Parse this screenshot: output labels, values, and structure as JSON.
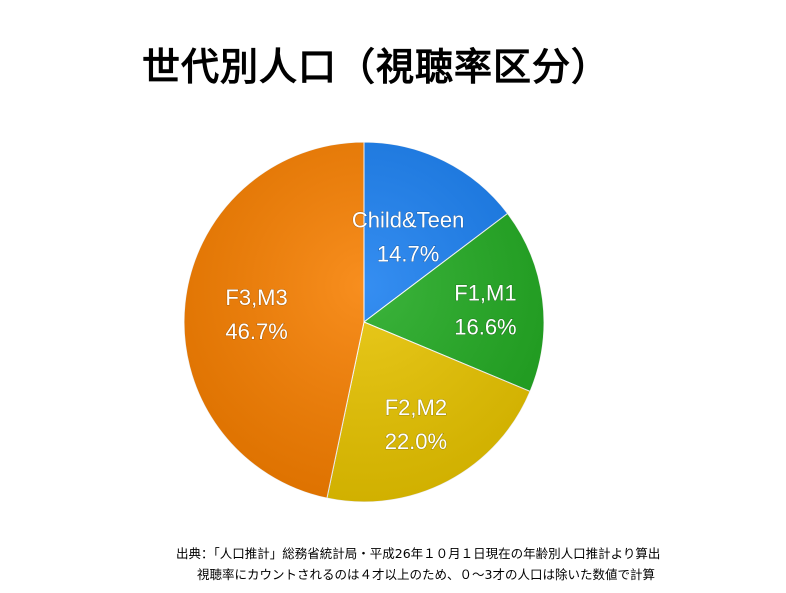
{
  "title": "世代別人口（視聴率区分）",
  "chart_data": {
    "type": "pie",
    "title": "世代別人口（視聴率区分）",
    "slices": [
      {
        "label": "Child&Teen",
        "value": 14.7,
        "value_label": "14.7%",
        "color": "#1a7ff0"
      },
      {
        "label": "F1,M1",
        "value": 16.6,
        "value_label": "16.6%",
        "color": "#22aa22"
      },
      {
        "label": "F2,M2",
        "value": 22.0,
        "value_label": "22.0%",
        "color": "#e8c400"
      },
      {
        "label": "F3,M3",
        "value": 46.7,
        "value_label": "46.7%",
        "color": "#f77f00"
      }
    ],
    "start_angle": "12 o'clock",
    "direction": "clockwise",
    "legend": "none"
  },
  "footnotes": {
    "line1": "出典：「人口推計」総務省統計局・平成26年１０月１日現在の年齢別人口推計より算出",
    "line2": "視聴率にカウントされるのは４才以上のため、０〜3才の人口は除いた数値で計算"
  }
}
